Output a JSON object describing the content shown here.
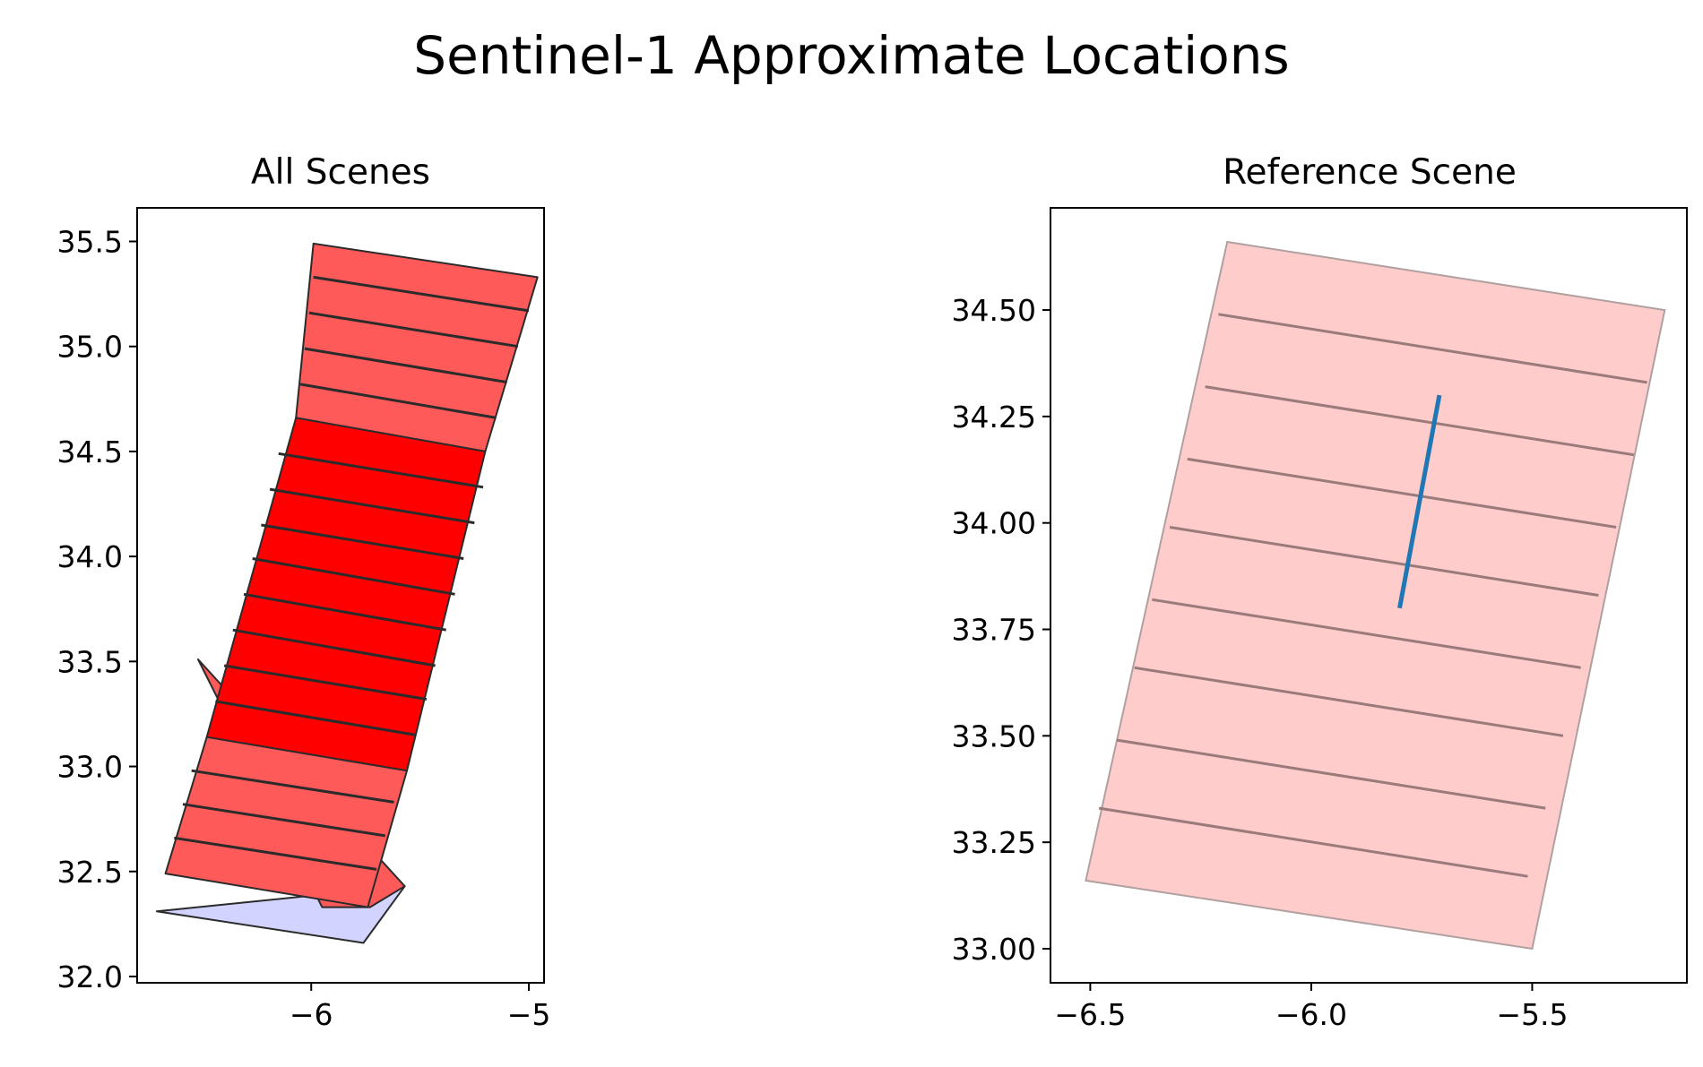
{
  "figure_title": "Sentinel-1 Approximate Locations",
  "chart_data": [
    {
      "type": "polygon-map",
      "title": "All Scenes",
      "xlim": [
        -6.8,
        -4.93
      ],
      "ylim": [
        31.97,
        35.66
      ],
      "xticks": [
        -6,
        -5
      ],
      "xtick_labels": [
        "−6",
        "−5"
      ],
      "yticks": [
        32.0,
        32.5,
        33.0,
        33.5,
        34.0,
        34.5,
        35.0,
        35.5
      ],
      "ytick_labels": [
        "32.0",
        "32.5",
        "33.0",
        "33.5",
        "34.0",
        "34.5",
        "35.0",
        "35.5"
      ],
      "footprints": [
        {
          "style": "extra",
          "polygon": [
            [
              -6.71,
              32.31
            ],
            [
              -5.57,
              32.43
            ],
            [
              -5.76,
              32.16
            ]
          ]
        },
        {
          "style": "ref",
          "polygon": [
            [
              -6.52,
              33.51
            ],
            [
              -5.57,
              32.43
            ],
            [
              -5.73,
              32.33
            ],
            [
              -5.95,
              32.33
            ]
          ]
        },
        {
          "style": "light",
          "polygon": [
            [
              -6.67,
              32.49
            ],
            [
              -6.48,
              33.14
            ],
            [
              -5.56,
              32.98
            ],
            [
              -5.74,
              32.33
            ]
          ]
        },
        {
          "style": "light",
          "polygon": [
            [
              -6.07,
              34.66
            ],
            [
              -5.99,
              35.49
            ],
            [
              -4.96,
              35.33
            ],
            [
              -5.2,
              34.5
            ]
          ]
        },
        {
          "style": "dark",
          "polygon": [
            [
              -6.48,
              33.14
            ],
            [
              -6.07,
              34.66
            ],
            [
              -5.2,
              34.5
            ],
            [
              -5.56,
              32.98
            ]
          ]
        }
      ],
      "burst_lines": [
        [
          [
            -6.63,
            32.66
          ],
          [
            -5.7,
            32.51
          ]
        ],
        [
          [
            -6.59,
            32.82
          ],
          [
            -5.66,
            32.67
          ]
        ],
        [
          [
            -6.55,
            32.98
          ],
          [
            -5.62,
            32.83
          ]
        ],
        [
          [
            -6.44,
            33.31
          ],
          [
            -5.52,
            33.15
          ]
        ],
        [
          [
            -6.4,
            33.48
          ],
          [
            -5.47,
            33.32
          ]
        ],
        [
          [
            -6.36,
            33.65
          ],
          [
            -5.43,
            33.48
          ]
        ],
        [
          [
            -6.31,
            33.82
          ],
          [
            -5.38,
            33.65
          ]
        ],
        [
          [
            -6.27,
            33.99
          ],
          [
            -5.34,
            33.82
          ]
        ],
        [
          [
            -6.23,
            34.15
          ],
          [
            -5.3,
            33.99
          ]
        ],
        [
          [
            -6.19,
            34.32
          ],
          [
            -5.25,
            34.16
          ]
        ],
        [
          [
            -6.15,
            34.49
          ],
          [
            -5.21,
            34.33
          ]
        ],
        [
          [
            -6.05,
            34.82
          ],
          [
            -5.15,
            34.66
          ]
        ],
        [
          [
            -6.03,
            34.99
          ],
          [
            -5.1,
            34.83
          ]
        ],
        [
          [
            -6.01,
            35.16
          ],
          [
            -5.05,
            35.0
          ]
        ],
        [
          [
            -5.99,
            35.33
          ],
          [
            -5.0,
            35.17
          ]
        ]
      ],
      "colors": {
        "dark": "#ff0000",
        "light": "#ff5a5a",
        "extra": "#d3d3ff",
        "outline": "#2b2b2b"
      }
    },
    {
      "type": "polygon-map",
      "title": "Reference Scene",
      "xlim": [
        -6.59,
        -5.15
      ],
      "ylim": [
        32.92,
        34.74
      ],
      "xticks": [
        -6.5,
        -6.0,
        -5.5
      ],
      "xtick_labels": [
        "−6.5",
        "−6.0",
        "−5.5"
      ],
      "yticks": [
        33.0,
        33.25,
        33.5,
        33.75,
        34.0,
        34.25,
        34.5
      ],
      "ytick_labels": [
        "33.00",
        "33.25",
        "33.50",
        "33.75",
        "34.00",
        "34.25",
        "34.50"
      ],
      "footprint": [
        [
          -6.19,
          34.66
        ],
        [
          -5.2,
          34.5
        ],
        [
          -5.5,
          33.0
        ],
        [
          -6.51,
          33.16
        ]
      ],
      "burst_lines": [
        [
          [
            -6.21,
            34.49
          ],
          [
            -5.24,
            34.33
          ]
        ],
        [
          [
            -6.24,
            34.32
          ],
          [
            -5.27,
            34.16
          ]
        ],
        [
          [
            -6.28,
            34.15
          ],
          [
            -5.31,
            33.99
          ]
        ],
        [
          [
            -6.32,
            33.99
          ],
          [
            -5.35,
            33.83
          ]
        ],
        [
          [
            -6.36,
            33.82
          ],
          [
            -5.39,
            33.66
          ]
        ],
        [
          [
            -6.4,
            33.66
          ],
          [
            -5.43,
            33.5
          ]
        ],
        [
          [
            -6.44,
            33.49
          ],
          [
            -5.47,
            33.33
          ]
        ],
        [
          [
            -6.48,
            33.33
          ],
          [
            -5.51,
            33.17
          ]
        ]
      ],
      "track": [
        [
          -5.8,
          33.8
        ],
        [
          -5.71,
          34.3
        ]
      ],
      "colors": {
        "fill": "#ffcccc",
        "edge": "#b0a0a0",
        "burst": "#9a7a7a",
        "track": "#1f77b4"
      }
    }
  ]
}
